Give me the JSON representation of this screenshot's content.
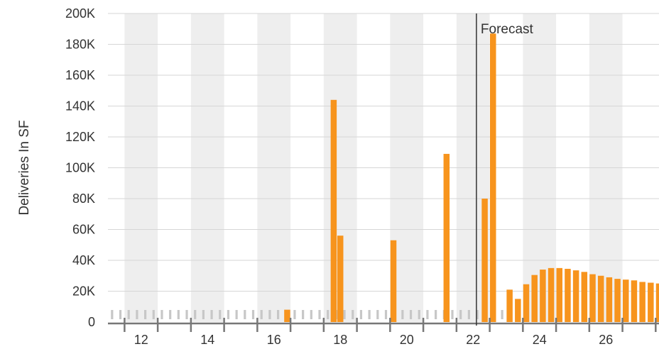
{
  "chart_data": {
    "type": "bar",
    "title": "",
    "ylabel": "Deliveries In SF",
    "xlabel": "",
    "x_ticks": [
      "12",
      "14",
      "16",
      "18",
      "20",
      "22",
      "24",
      "26"
    ],
    "y_ticks": [
      "0",
      "20K",
      "40K",
      "60K",
      "80K",
      "100K",
      "120K",
      "140K",
      "160K",
      "180K",
      "200K"
    ],
    "xlim": [
      11,
      27.6
    ],
    "ylim": [
      0,
      200000
    ],
    "forecast_x": 22.1,
    "forecast_label": "Forecast",
    "grid": true,
    "alternate_year_bands": true,
    "bar_color": "#f7941d",
    "series": [
      {
        "values": [
          {
            "x": 16.4,
            "y": 8000
          },
          {
            "x": 17.8,
            "y": 144000
          },
          {
            "x": 18.0,
            "y": 56000
          },
          {
            "x": 19.6,
            "y": 53000
          },
          {
            "x": 21.2,
            "y": 109000
          },
          {
            "x": 22.35,
            "y": 80000
          },
          {
            "x": 22.6,
            "y": 187000
          },
          {
            "x": 23.1,
            "y": 21000
          },
          {
            "x": 23.35,
            "y": 15000
          },
          {
            "x": 23.6,
            "y": 24500
          },
          {
            "x": 23.85,
            "y": 30500
          },
          {
            "x": 24.1,
            "y": 34000
          },
          {
            "x": 24.35,
            "y": 35000
          },
          {
            "x": 24.6,
            "y": 35000
          },
          {
            "x": 24.85,
            "y": 34500
          },
          {
            "x": 25.1,
            "y": 33500
          },
          {
            "x": 25.35,
            "y": 32500
          },
          {
            "x": 25.6,
            "y": 31000
          },
          {
            "x": 25.85,
            "y": 30000
          },
          {
            "x": 26.1,
            "y": 29000
          },
          {
            "x": 26.35,
            "y": 28000
          },
          {
            "x": 26.6,
            "y": 27500
          },
          {
            "x": 26.85,
            "y": 27000
          },
          {
            "x": 27.1,
            "y": 26000
          },
          {
            "x": 27.35,
            "y": 25500
          },
          {
            "x": 27.6,
            "y": 25000
          }
        ]
      }
    ]
  }
}
